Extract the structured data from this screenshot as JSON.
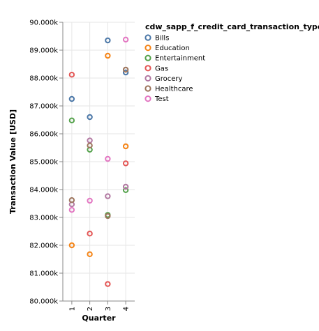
{
  "chart_data": {
    "type": "scatter",
    "xlabel": "Quarter",
    "ylabel": "Transaction Value [USD]",
    "categories": [
      "1",
      "2",
      "3",
      "4"
    ],
    "ylim": [
      80000,
      90000
    ],
    "y_ticks": [
      "80.000k",
      "81.000k",
      "82.000k",
      "83.000k",
      "84.000k",
      "85.000k",
      "86.000k",
      "87.000k",
      "88.000k",
      "89.000k",
      "90.000k"
    ],
    "grid": true,
    "legend_title": "cdw_sapp_f_credit_card_transaction_type",
    "legend_position": "right",
    "series": [
      {
        "name": "Bills",
        "color": "#4c78a8",
        "points": [
          {
            "x": "1",
            "y": 87250
          },
          {
            "x": "2",
            "y": 86600
          },
          {
            "x": "3",
            "y": 89350
          },
          {
            "x": "4",
            "y": 88200
          }
        ]
      },
      {
        "name": "Education",
        "color": "#f58518",
        "points": [
          {
            "x": "1",
            "y": 82000
          },
          {
            "x": "2",
            "y": 81680
          },
          {
            "x": "3",
            "y": 88800
          },
          {
            "x": "4",
            "y": 85550
          }
        ]
      },
      {
        "name": "Entertainment",
        "color": "#54a24b",
        "points": [
          {
            "x": "1",
            "y": 86480
          },
          {
            "x": "2",
            "y": 85430
          },
          {
            "x": "3",
            "y": 83090
          },
          {
            "x": "4",
            "y": 83980
          }
        ]
      },
      {
        "name": "Gas",
        "color": "#e45756",
        "points": [
          {
            "x": "1",
            "y": 88120
          },
          {
            "x": "2",
            "y": 82420
          },
          {
            "x": "3",
            "y": 80610
          },
          {
            "x": "4",
            "y": 84940
          }
        ]
      },
      {
        "name": "Grocery",
        "color": "#b279a2",
        "points": [
          {
            "x": "1",
            "y": 83470
          },
          {
            "x": "2",
            "y": 85760
          },
          {
            "x": "3",
            "y": 83760
          },
          {
            "x": "4",
            "y": 84100
          }
        ]
      },
      {
        "name": "Healthcare",
        "color": "#9d755d",
        "points": [
          {
            "x": "1",
            "y": 83620
          },
          {
            "x": "2",
            "y": 85580
          },
          {
            "x": "3",
            "y": 83050
          },
          {
            "x": "4",
            "y": 88300
          }
        ]
      },
      {
        "name": "Test",
        "color": "#e377c2",
        "points": [
          {
            "x": "1",
            "y": 83270
          },
          {
            "x": "2",
            "y": 83600
          },
          {
            "x": "3",
            "y": 85100
          },
          {
            "x": "4",
            "y": 89380
          }
        ]
      }
    ]
  }
}
